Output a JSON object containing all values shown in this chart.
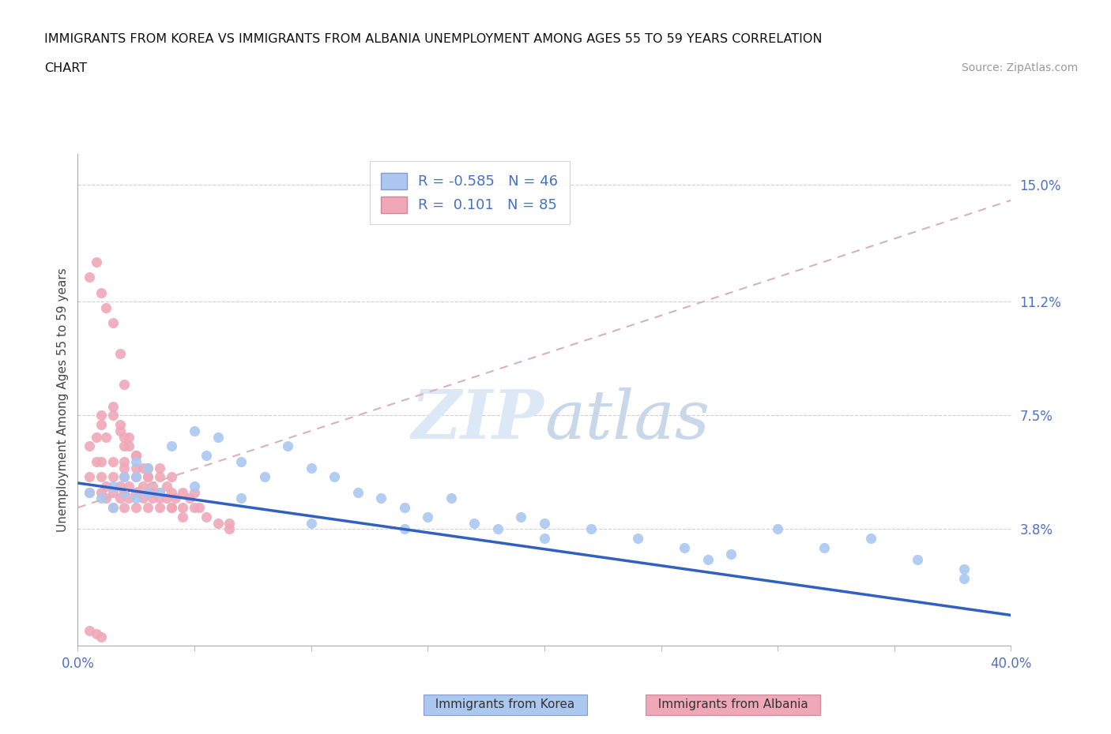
{
  "title_line1": "IMMIGRANTS FROM KOREA VS IMMIGRANTS FROM ALBANIA UNEMPLOYMENT AMONG AGES 55 TO 59 YEARS CORRELATION",
  "title_line2": "CHART",
  "source": "Source: ZipAtlas.com",
  "ylabel": "Unemployment Among Ages 55 to 59 years",
  "xlim": [
    0.0,
    0.4
  ],
  "ylim": [
    0.0,
    0.16
  ],
  "korea_R": -0.585,
  "korea_N": 46,
  "albania_R": 0.101,
  "albania_N": 85,
  "korea_color": "#aac8f0",
  "albania_color": "#f0a8b8",
  "korea_line_color": "#3060c0",
  "albania_line_color": "#d8b0c0",
  "watermark_text": "ZIPatlas",
  "ytick_values": [
    0.038,
    0.075,
    0.112,
    0.15
  ],
  "ytick_labels": [
    "3.8%",
    "7.5%",
    "11.2%",
    "15.0%"
  ],
  "legend_korea": "Immigrants from Korea",
  "legend_albania": "Immigrants from Albania",
  "background_color": "#ffffff",
  "korea_x": [
    0.005,
    0.01,
    0.015,
    0.02,
    0.02,
    0.025,
    0.025,
    0.03,
    0.03,
    0.04,
    0.05,
    0.055,
    0.06,
    0.07,
    0.08,
    0.09,
    0.1,
    0.11,
    0.12,
    0.13,
    0.14,
    0.15,
    0.16,
    0.17,
    0.18,
    0.19,
    0.2,
    0.22,
    0.24,
    0.26,
    0.28,
    0.3,
    0.32,
    0.34,
    0.36,
    0.38,
    0.015,
    0.025,
    0.035,
    0.05,
    0.07,
    0.1,
    0.14,
    0.2,
    0.27,
    0.38
  ],
  "korea_y": [
    0.05,
    0.048,
    0.052,
    0.05,
    0.055,
    0.048,
    0.06,
    0.05,
    0.058,
    0.065,
    0.07,
    0.062,
    0.068,
    0.06,
    0.055,
    0.065,
    0.058,
    0.055,
    0.05,
    0.048,
    0.045,
    0.042,
    0.048,
    0.04,
    0.038,
    0.042,
    0.04,
    0.038,
    0.035,
    0.032,
    0.03,
    0.038,
    0.032,
    0.035,
    0.028,
    0.025,
    0.045,
    0.055,
    0.05,
    0.052,
    0.048,
    0.04,
    0.038,
    0.035,
    0.028,
    0.022
  ],
  "albania_x": [
    0.005,
    0.005,
    0.008,
    0.01,
    0.01,
    0.01,
    0.012,
    0.012,
    0.015,
    0.015,
    0.015,
    0.015,
    0.018,
    0.018,
    0.02,
    0.02,
    0.02,
    0.02,
    0.02,
    0.022,
    0.022,
    0.025,
    0.025,
    0.025,
    0.025,
    0.025,
    0.028,
    0.028,
    0.03,
    0.03,
    0.03,
    0.03,
    0.032,
    0.032,
    0.035,
    0.035,
    0.035,
    0.035,
    0.038,
    0.038,
    0.04,
    0.04,
    0.04,
    0.042,
    0.045,
    0.045,
    0.048,
    0.05,
    0.05,
    0.052,
    0.055,
    0.06,
    0.065,
    0.065,
    0.005,
    0.008,
    0.01,
    0.012,
    0.015,
    0.018,
    0.02,
    0.022,
    0.025,
    0.028,
    0.03,
    0.032,
    0.035,
    0.04,
    0.045,
    0.01,
    0.015,
    0.018,
    0.02,
    0.022,
    0.025,
    0.005,
    0.008,
    0.01,
    0.012,
    0.015,
    0.018,
    0.02,
    0.005,
    0.008,
    0.01
  ],
  "albania_y": [
    0.05,
    0.055,
    0.06,
    0.05,
    0.055,
    0.06,
    0.048,
    0.052,
    0.045,
    0.05,
    0.055,
    0.06,
    0.048,
    0.052,
    0.045,
    0.05,
    0.055,
    0.058,
    0.06,
    0.048,
    0.052,
    0.045,
    0.05,
    0.055,
    0.058,
    0.062,
    0.048,
    0.052,
    0.045,
    0.05,
    0.055,
    0.058,
    0.048,
    0.052,
    0.045,
    0.05,
    0.055,
    0.058,
    0.048,
    0.052,
    0.045,
    0.05,
    0.055,
    0.048,
    0.045,
    0.05,
    0.048,
    0.045,
    0.05,
    0.045,
    0.042,
    0.04,
    0.038,
    0.04,
    0.065,
    0.068,
    0.072,
    0.068,
    0.075,
    0.07,
    0.065,
    0.068,
    0.062,
    0.058,
    0.055,
    0.05,
    0.048,
    0.045,
    0.042,
    0.075,
    0.078,
    0.072,
    0.068,
    0.065,
    0.062,
    0.12,
    0.125,
    0.115,
    0.11,
    0.105,
    0.095,
    0.085,
    0.005,
    0.004,
    0.003
  ]
}
